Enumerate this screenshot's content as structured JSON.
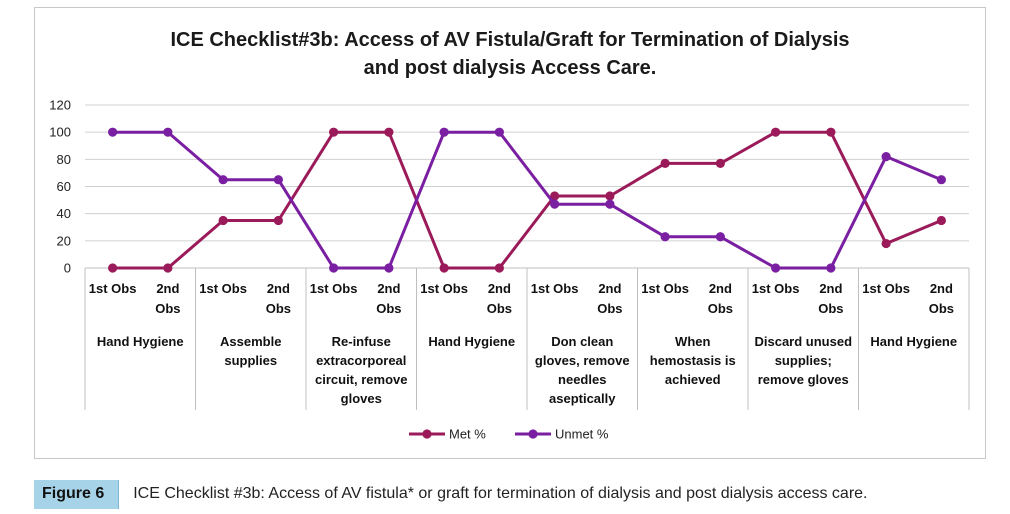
{
  "chart_data": {
    "type": "line",
    "title_lines": [
      "ICE Checklist#3b: Access of AV Fistula/Graft for Termination of Dialysis",
      "and post dialysis Access Care."
    ],
    "ylim": [
      0,
      120
    ],
    "yticks": [
      "0",
      "20",
      "40",
      "60",
      "80",
      "100",
      "120"
    ],
    "grid": true,
    "legend_position": "bottom-center",
    "groups": [
      {
        "label_lines": [
          "Hand Hygiene"
        ]
      },
      {
        "label_lines": [
          "Assemble",
          "supplies"
        ]
      },
      {
        "label_lines": [
          "Re-infuse",
          "extracorporeal",
          "circuit, remove",
          "gloves"
        ]
      },
      {
        "label_lines": [
          "Hand Hygiene"
        ]
      },
      {
        "label_lines": [
          "Don clean",
          "gloves, remove",
          "needles",
          "aseptically"
        ]
      },
      {
        "label_lines": [
          "When",
          "hemostasis is",
          "achieved"
        ]
      },
      {
        "label_lines": [
          "Discard unused",
          "supplies;",
          "remove gloves"
        ]
      },
      {
        "label_lines": [
          "Hand Hygiene"
        ]
      }
    ],
    "sub_categories": [
      {
        "lines": [
          "1st Obs"
        ]
      },
      {
        "lines": [
          "2nd",
          "Obs"
        ]
      }
    ],
    "series": [
      {
        "name": "Met %",
        "color": "#9b1b5a",
        "values": [
          0,
          0,
          35,
          35,
          100,
          100,
          0,
          0,
          53,
          53,
          77,
          77,
          100,
          100,
          18,
          35
        ]
      },
      {
        "name": "Unmet %",
        "color": "#7a1fa2",
        "values": [
          100,
          100,
          65,
          65,
          0,
          0,
          100,
          100,
          47,
          47,
          23,
          23,
          0,
          0,
          82,
          65
        ]
      }
    ]
  },
  "caption": {
    "label": "Figure 6",
    "text": "ICE Checklist #3b: Access of AV fistula* or graft for termination of dialysis and post dialysis access care."
  }
}
